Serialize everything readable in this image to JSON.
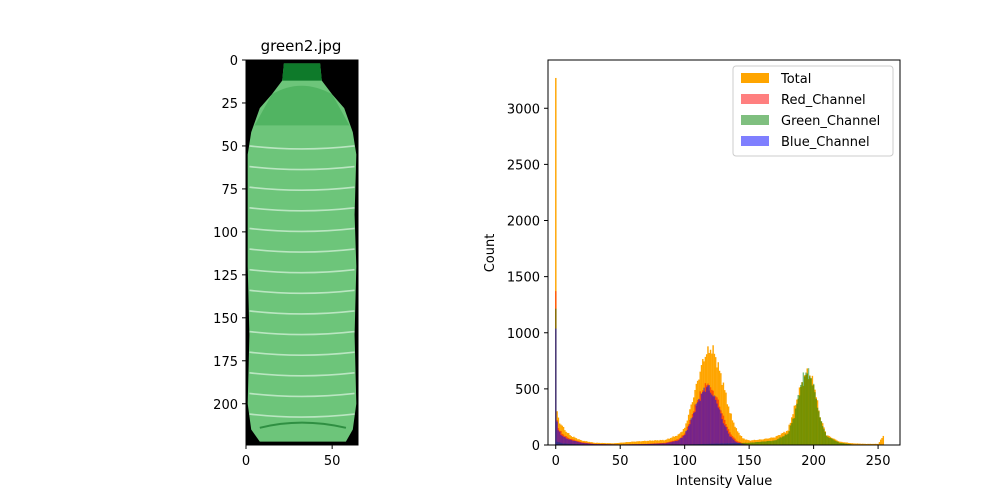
{
  "image_panel": {
    "title": "green2.jpg",
    "x_ticks": [
      0,
      50
    ],
    "y_ticks": [
      0,
      25,
      50,
      75,
      100,
      125,
      150,
      175,
      200
    ],
    "xlim": [
      0,
      65
    ],
    "ylim": [
      0,
      224
    ],
    "colors": {
      "background": "#000000",
      "bottle": "#6dc57a",
      "cap": "#0e7a2a",
      "highlight": "#cdeed3"
    }
  },
  "chart_data": {
    "type": "bar",
    "xlabel": "Intensity Value",
    "ylabel": "Count",
    "xlim": [
      -6,
      267
    ],
    "ylim": [
      0,
      3430
    ],
    "x_ticks": [
      0,
      50,
      100,
      150,
      200,
      250
    ],
    "y_ticks": [
      0,
      500,
      1000,
      1500,
      2000,
      2500,
      3000
    ],
    "legend_position": "top-right",
    "series": [
      {
        "name": "Total",
        "color": "#ffa500",
        "opacity": 1,
        "x": [
          0,
          1,
          2,
          3,
          5,
          8,
          12,
          20,
          30,
          45,
          60,
          75,
          85,
          95,
          100,
          105,
          110,
          115,
          120,
          123,
          126,
          130,
          135,
          140,
          145,
          150,
          160,
          170,
          180,
          190,
          195,
          200,
          205,
          210,
          220,
          230,
          240,
          250,
          254
        ],
        "values": [
          3270,
          290,
          240,
          200,
          170,
          120,
          80,
          40,
          20,
          15,
          30,
          40,
          45,
          90,
          150,
          350,
          570,
          780,
          860,
          820,
          700,
          540,
          290,
          140,
          60,
          40,
          50,
          70,
          130,
          520,
          650,
          560,
          250,
          90,
          30,
          15,
          10,
          10,
          80
        ]
      },
      {
        "name": "Red_Channel",
        "color": "#ff0000",
        "opacity": 0.5,
        "x": [
          0,
          1,
          2,
          5,
          10,
          20,
          30,
          50,
          70,
          85,
          95,
          100,
          105,
          110,
          115,
          118,
          120,
          125,
          130,
          135,
          140,
          145,
          150,
          160,
          170
        ],
        "values": [
          1270,
          230,
          150,
          100,
          60,
          25,
          10,
          5,
          10,
          20,
          50,
          100,
          240,
          400,
          510,
          540,
          500,
          420,
          250,
          110,
          40,
          15,
          5,
          2,
          0
        ]
      },
      {
        "name": "Green_Channel",
        "color": "#008000",
        "opacity": 0.5,
        "x": [
          0,
          1,
          5,
          20,
          50,
          100,
          150,
          170,
          180,
          185,
          190,
          193,
          195,
          198,
          200,
          205,
          210,
          220,
          230
        ],
        "values": [
          1240,
          30,
          15,
          5,
          5,
          5,
          20,
          40,
          100,
          260,
          530,
          640,
          660,
          600,
          520,
          240,
          80,
          20,
          5
        ]
      },
      {
        "name": "Blue_Channel",
        "color": "#0000ff",
        "opacity": 0.5,
        "x": [
          0,
          1,
          2,
          5,
          10,
          20,
          30,
          50,
          70,
          85,
          95,
          100,
          105,
          110,
          115,
          118,
          120,
          125,
          130,
          135,
          140,
          145,
          150,
          160
        ],
        "values": [
          1120,
          200,
          130,
          80,
          50,
          20,
          8,
          5,
          8,
          15,
          40,
          90,
          220,
          380,
          490,
          530,
          480,
          380,
          200,
          80,
          25,
          8,
          3,
          0
        ]
      }
    ]
  }
}
